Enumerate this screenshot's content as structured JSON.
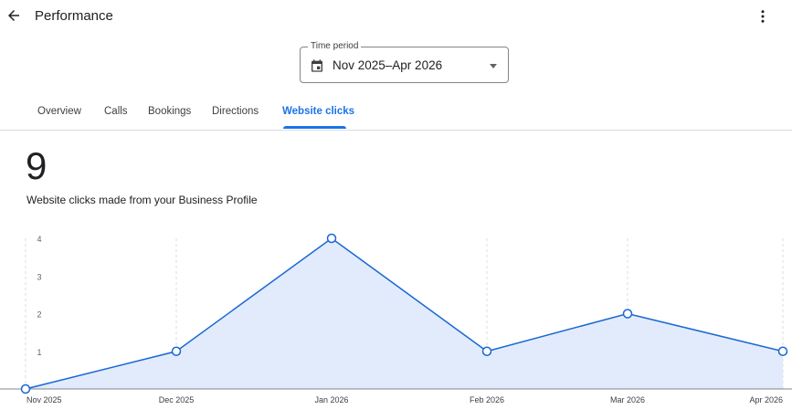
{
  "header": {
    "title": "Performance",
    "back_icon": "arrow-back-icon",
    "menu_icon": "more-vert-icon"
  },
  "time_period": {
    "label": "Time period",
    "value": "Nov 2025–Apr 2026",
    "icon": "calendar-icon"
  },
  "tabs": [
    {
      "label": "Overview"
    },
    {
      "label": "Calls"
    },
    {
      "label": "Bookings"
    },
    {
      "label": "Directions"
    },
    {
      "label": "Website clicks",
      "active": true
    }
  ],
  "metric": {
    "value": "9",
    "description": "Website clicks made from your Business Profile"
  },
  "colors": {
    "accent": "#1a73e8",
    "line": "#1967d2",
    "fill": "#e1ebfb"
  },
  "chart_data": {
    "type": "area",
    "categories": [
      "Nov 2025",
      "Dec 2025",
      "Jan 2026",
      "Feb 2026",
      "Mar 2026",
      "Apr 2026"
    ],
    "values": [
      0,
      1,
      4,
      1,
      2,
      1
    ],
    "yticks": [
      "1",
      "2",
      "3",
      "4"
    ],
    "ylim": [
      0,
      4
    ],
    "grid": "vertical dashed"
  }
}
